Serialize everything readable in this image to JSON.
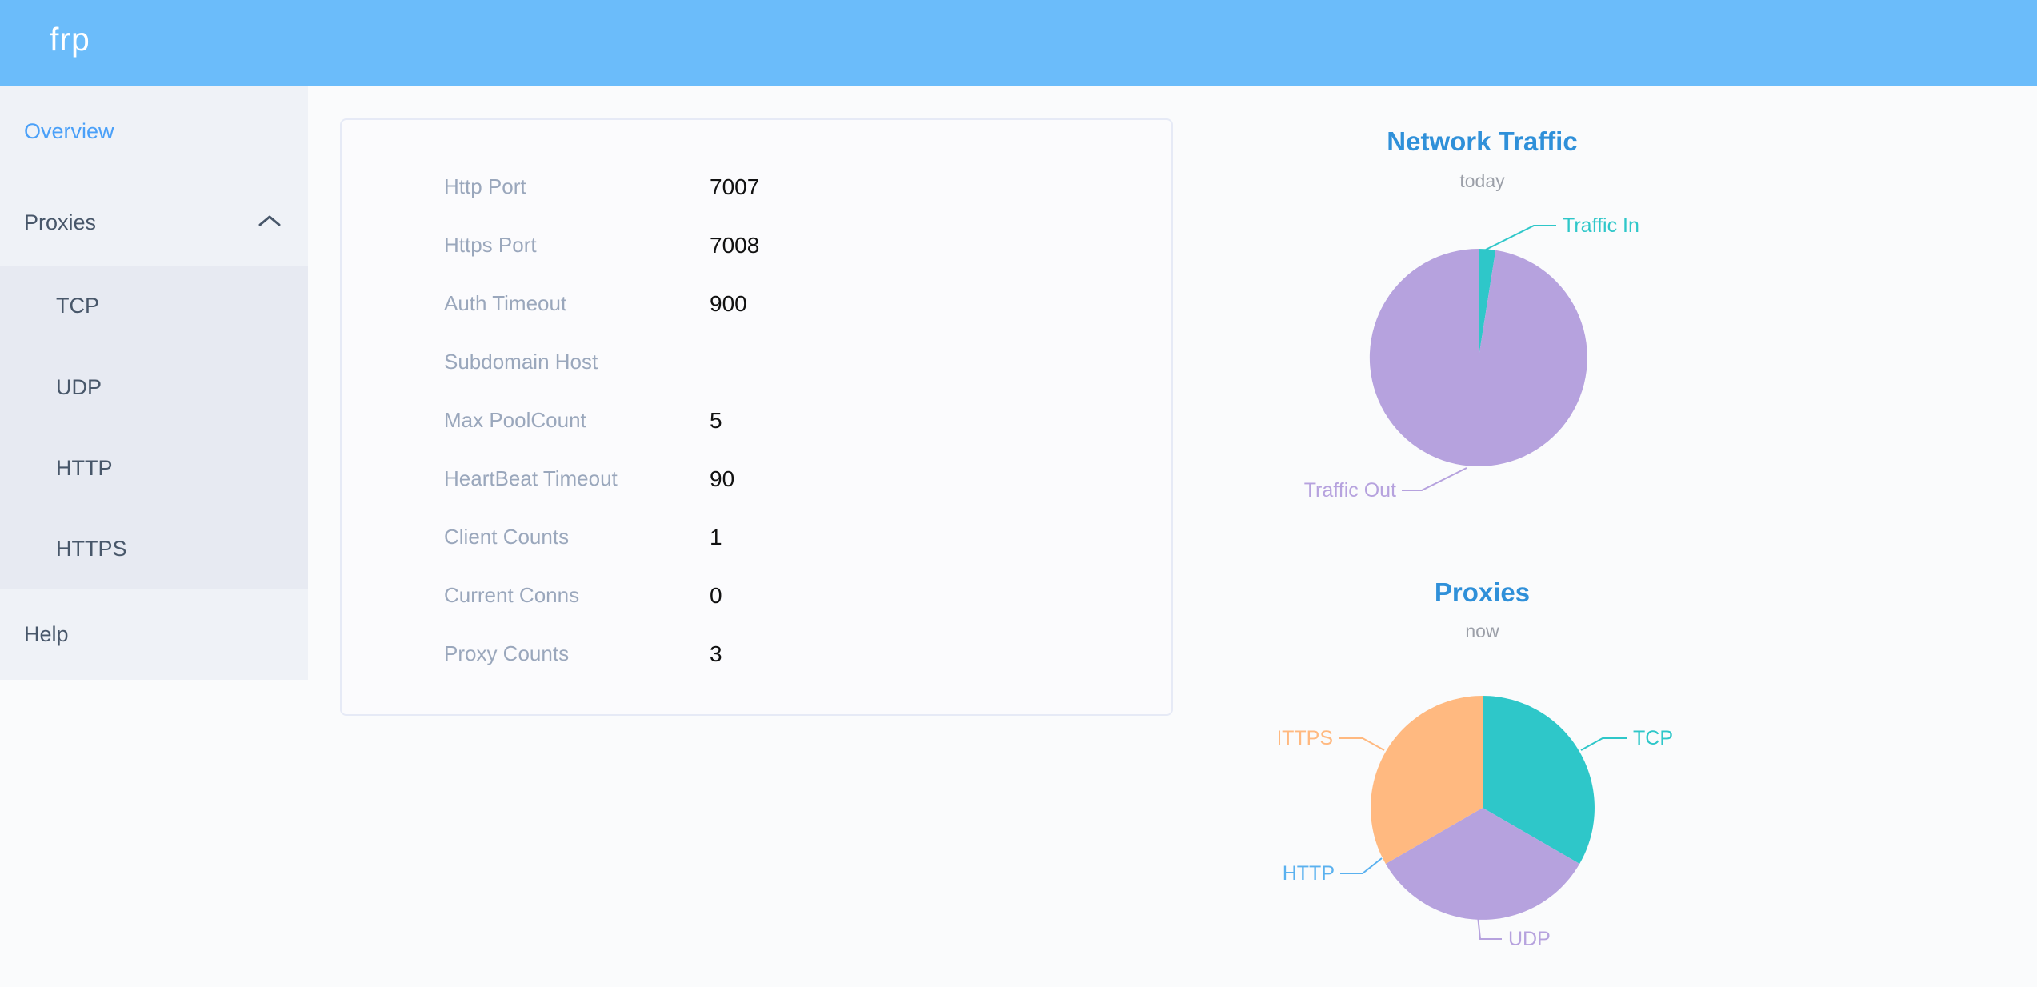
{
  "header": {
    "logo_text": "frp"
  },
  "sidebar": {
    "items": [
      {
        "label": "Overview",
        "active": true
      },
      {
        "label": "Proxies",
        "expanded": true
      },
      {
        "label": "TCP",
        "child": true
      },
      {
        "label": "UDP",
        "child": true
      },
      {
        "label": "HTTP",
        "child": true
      },
      {
        "label": "HTTPS",
        "child": true
      },
      {
        "label": "Help"
      }
    ]
  },
  "server_info": {
    "rows": [
      {
        "label": "Http Port",
        "value": "7007"
      },
      {
        "label": "Https Port",
        "value": "7008"
      },
      {
        "label": "Auth Timeout",
        "value": "900"
      },
      {
        "label": "Subdomain Host",
        "value": ""
      },
      {
        "label": "Max PoolCount",
        "value": "5"
      },
      {
        "label": "HeartBeat Timeout",
        "value": "90"
      },
      {
        "label": "Client Counts",
        "value": "1"
      },
      {
        "label": "Current Conns",
        "value": "0"
      },
      {
        "label": "Proxy Counts",
        "value": "3"
      }
    ]
  },
  "chart_data": [
    {
      "type": "pie",
      "title": "Network Traffic",
      "subtitle": "today",
      "start_angle_deg": 0,
      "direction": "clockwise",
      "legend_position": "outside-callout-labels",
      "values_unit": "percent_of_total_estimated_from_angles",
      "slices": [
        {
          "label": "Traffic In",
          "value": 2.5,
          "color": "#2ec7c9"
        },
        {
          "label": "Traffic Out",
          "value": 97.5,
          "color": "#b6a2de"
        }
      ]
    },
    {
      "type": "pie",
      "title": "Proxies",
      "subtitle": "now",
      "start_angle_deg": 0,
      "direction": "clockwise",
      "legend_position": "outside-callout-labels",
      "values_unit": "proxy_count",
      "slices": [
        {
          "label": "TCP",
          "value": 1,
          "color": "#2ec7c9"
        },
        {
          "label": "UDP",
          "value": 1,
          "color": "#b6a2de"
        },
        {
          "label": "HTTP",
          "value": 0,
          "color": "#5ab1ef"
        },
        {
          "label": "HTTPS",
          "value": 1,
          "color": "#ffb980"
        }
      ]
    }
  ],
  "colors": {
    "header_bg": "#6bbcfa",
    "sidebar_bg": "#eff2f7",
    "submenu_bg": "#e7eaf2",
    "sidebar_text": "#48576a",
    "active_item_text": "#4aa0f8",
    "chart_title_blue": "#2f90d9",
    "config_label_gray": "#9aa7bc",
    "pie_teal": "#2ec7c9",
    "pie_purple": "#b6a2de",
    "pie_blue": "#5ab1ef",
    "pie_orange": "#ffb980"
  }
}
